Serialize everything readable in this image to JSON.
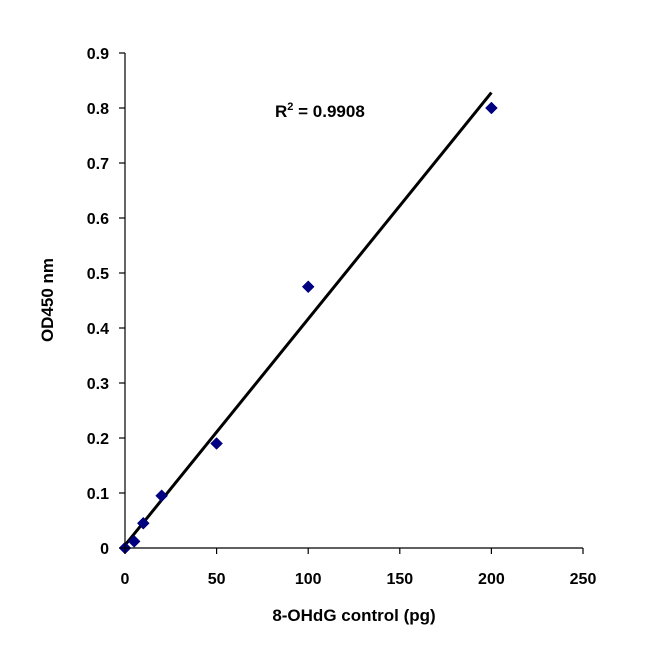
{
  "chart_data": {
    "type": "scatter",
    "title": "",
    "xlabel": "8-OHdG control (pg)",
    "ylabel": "OD450 nm",
    "xlim": [
      0,
      250
    ],
    "ylim": [
      0,
      0.9
    ],
    "xticks": [
      0,
      50,
      100,
      150,
      200,
      250
    ],
    "yticks": [
      0,
      0.1,
      0.2,
      0.3,
      0.4,
      0.5,
      0.6,
      0.7,
      0.8,
      0.9
    ],
    "xtick_labels": [
      "0",
      "50",
      "100",
      "150",
      "200",
      "250"
    ],
    "ytick_labels": [
      "0",
      "0.1",
      "0.2",
      "0.3",
      "0.4",
      "0.5",
      "0.6",
      "0.7",
      "0.8",
      "0.9"
    ],
    "grid": false,
    "legend": "none",
    "series": [
      {
        "marker": "diamond",
        "color": "#000080",
        "x": [
          0,
          5,
          10,
          20,
          50,
          100,
          200
        ],
        "y": [
          0.0,
          0.012,
          0.045,
          0.095,
          0.19,
          0.475,
          0.8
        ]
      }
    ],
    "trendline": {
      "type": "linear",
      "color": "#000000",
      "x": [
        0,
        200
      ],
      "y": [
        0.005,
        0.828
      ]
    },
    "annotations": [
      {
        "text_prefix": "R",
        "superscript": "2",
        "text_suffix": " = 0.9908"
      }
    ]
  }
}
